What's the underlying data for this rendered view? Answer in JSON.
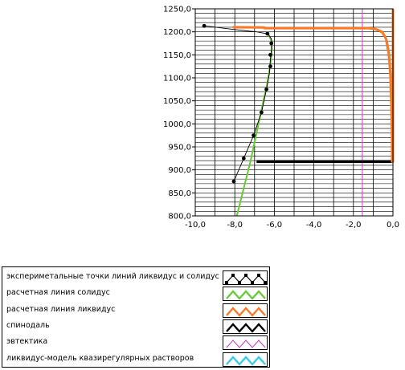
{
  "chart_data": {
    "type": "line",
    "xlim": [
      -10.0,
      0.0
    ],
    "ylim": [
      800.0,
      1250.0
    ],
    "x_ticks": [
      "-10,0",
      "-8,0",
      "-6,0",
      "-4,0",
      "-2,0",
      "0,0"
    ],
    "y_ticks": [
      "800,0",
      "850,0",
      "900,0",
      "950,0",
      "1000,0",
      "1050,0",
      "1100,0",
      "1150,0",
      "1200,0",
      "1250,0"
    ],
    "grid": true,
    "series": [
      {
        "name": "эксперим­етальные точки линий ликвидус и солидус",
        "color": "#000000",
        "style": "line-markers",
        "points": [
          [
            -9.55,
            1213
          ],
          [
            -6.35,
            1196
          ],
          [
            -6.15,
            1175
          ],
          [
            -6.2,
            1150
          ],
          [
            -6.2,
            1125
          ],
          [
            -6.4,
            1075
          ],
          [
            -6.65,
            1025
          ],
          [
            -7.05,
            975
          ],
          [
            -7.55,
            925
          ],
          [
            -8.05,
            875
          ]
        ],
        "curve": [
          [
            -9.55,
            1213
          ],
          [
            -9.1,
            1211
          ],
          [
            -8.6,
            1208
          ],
          [
            -8.0,
            1205
          ],
          [
            -7.4,
            1202
          ],
          [
            -6.9,
            1200
          ],
          [
            -6.5,
            1197
          ],
          [
            -6.3,
            1194
          ],
          [
            -6.15,
            1185
          ],
          [
            -6.12,
            1175
          ],
          [
            -6.15,
            1160
          ],
          [
            -6.2,
            1140
          ],
          [
            -6.25,
            1110
          ],
          [
            -6.4,
            1075
          ],
          [
            -6.65,
            1025
          ],
          [
            -7.05,
            975
          ],
          [
            -7.55,
            925
          ],
          [
            -8.05,
            875
          ]
        ]
      },
      {
        "name": "расчетная линия солидус",
        "color": "#66cc33",
        "points": [
          [
            -6.35,
            1200
          ],
          [
            -6.15,
            1180
          ],
          [
            -6.12,
            1160
          ],
          [
            -6.2,
            1130
          ],
          [
            -6.35,
            1090
          ],
          [
            -6.6,
            1040
          ],
          [
            -6.9,
            980
          ],
          [
            -7.2,
            920
          ],
          [
            -7.55,
            860
          ],
          [
            -7.9,
            800
          ]
        ]
      },
      {
        "name": "расчетная линия ликвидус",
        "color": "#ff7722",
        "points": [
          [
            -8.1,
            1210
          ],
          [
            -6.5,
            1209.5
          ],
          [
            -6.5,
            1208
          ],
          [
            -5.0,
            1208
          ],
          [
            -3.0,
            1208
          ],
          [
            -1.2,
            1208
          ],
          [
            -0.9,
            1206
          ],
          [
            -0.55,
            1200
          ],
          [
            -0.35,
            1185
          ],
          [
            -0.2,
            1150
          ],
          [
            -0.12,
            1100
          ],
          [
            -0.08,
            1040
          ],
          [
            -0.06,
            1000
          ],
          [
            -0.05,
            960
          ],
          [
            -0.04,
            918
          ],
          [
            0.0,
            918
          ],
          [
            0.0,
            1250
          ]
        ]
      },
      {
        "name": "спинодаль",
        "color": "#000000",
        "points": [
          [
            -6.9,
            918
          ],
          [
            0.0,
            918
          ]
        ]
      },
      {
        "name": "эвтектика",
        "color": "#cc33cc",
        "points": [
          [
            -1.55,
            800
          ],
          [
            -1.55,
            1250
          ]
        ]
      },
      {
        "name": "ликвидус-модель квазирегулярных растворов",
        "color": "#33ccee",
        "points": [
          [
            -1.1,
            1208
          ],
          [
            -0.8,
            1205
          ],
          [
            -0.5,
            1197
          ],
          [
            -0.3,
            1180
          ],
          [
            -0.18,
            1150
          ],
          [
            -0.1,
            1100
          ],
          [
            -0.05,
            1030
          ],
          [
            -0.02,
            940
          ]
        ]
      }
    ]
  }
}
